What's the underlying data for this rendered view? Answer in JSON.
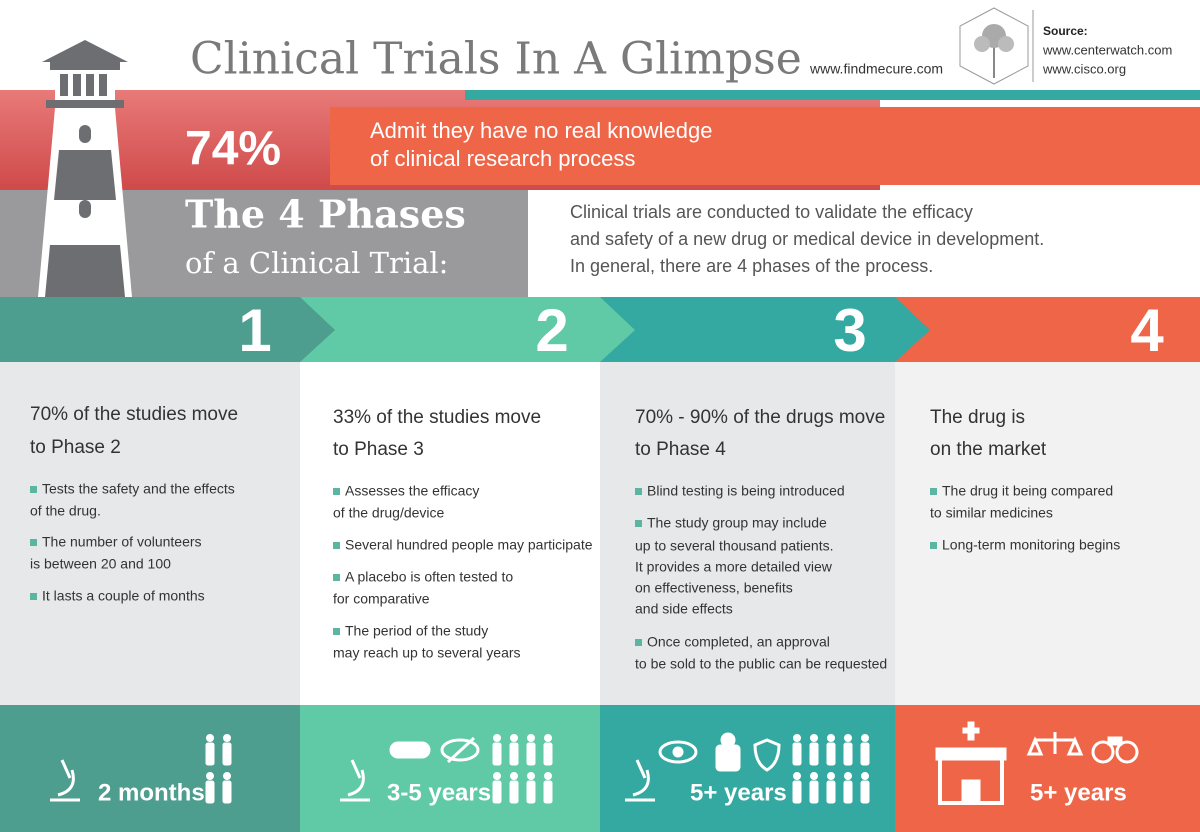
{
  "header": {
    "title": "Clinical Trials In A Glimpse",
    "website": "www.findmecure.com",
    "source_label": "Source:",
    "sources": [
      "www.centerwatch.com",
      "www.cisco.org"
    ]
  },
  "stat": {
    "value": "74%",
    "text": [
      "Admit they have no real knowledge",
      "of clinical research process"
    ]
  },
  "intro": {
    "title": "The 4 Phases",
    "subtitle": "of a Clinical Trial:",
    "text": [
      "Clinical trials are conducted to validate the efficacy",
      "and safety of a new drug or medical device in development.",
      "In general, there are 4 phases of the process."
    ]
  },
  "phases": [
    {
      "number": "1",
      "heading": [
        "70%  of the studies move",
        "to Phase 2"
      ],
      "bullets": [
        [
          "Tests the safety and the effects",
          "of the drug."
        ],
        [
          "The number of volunteers",
          "is between 20 and 100"
        ],
        [
          "It lasts a couple of months"
        ]
      ],
      "duration": "2 months"
    },
    {
      "number": "2",
      "heading": [
        "33% of the studies move",
        "to Phase 3"
      ],
      "bullets": [
        [
          "Assesses the efficacy",
          "of the drug/device"
        ],
        [
          "Several hundred people may participate"
        ],
        [
          "A placebo is often tested to",
          "for comparative"
        ],
        [
          "The period of the study",
          "may reach up to several years"
        ]
      ],
      "duration": "3-5 years"
    },
    {
      "number": "3",
      "heading": [
        "70% - 90% of the drugs move",
        "to Phase 4"
      ],
      "bullets": [
        [
          "Blind testing is being introduced"
        ],
        [
          "The study group may include",
          "up to several thousand patients.",
          "It provides a more detailed view",
          "on effectiveness, benefits",
          "and side effects"
        ],
        [
          "Once completed, an approval",
          "to be sold to the public can be requested"
        ]
      ],
      "duration": "5+ years"
    },
    {
      "number": "4",
      "heading": [
        "The drug is",
        "on the market"
      ],
      "bullets": [
        [
          "The drug it being compared",
          "to similar medicines"
        ],
        [
          "Long-term monitoring begins"
        ]
      ],
      "duration": "5+ years"
    }
  ]
}
